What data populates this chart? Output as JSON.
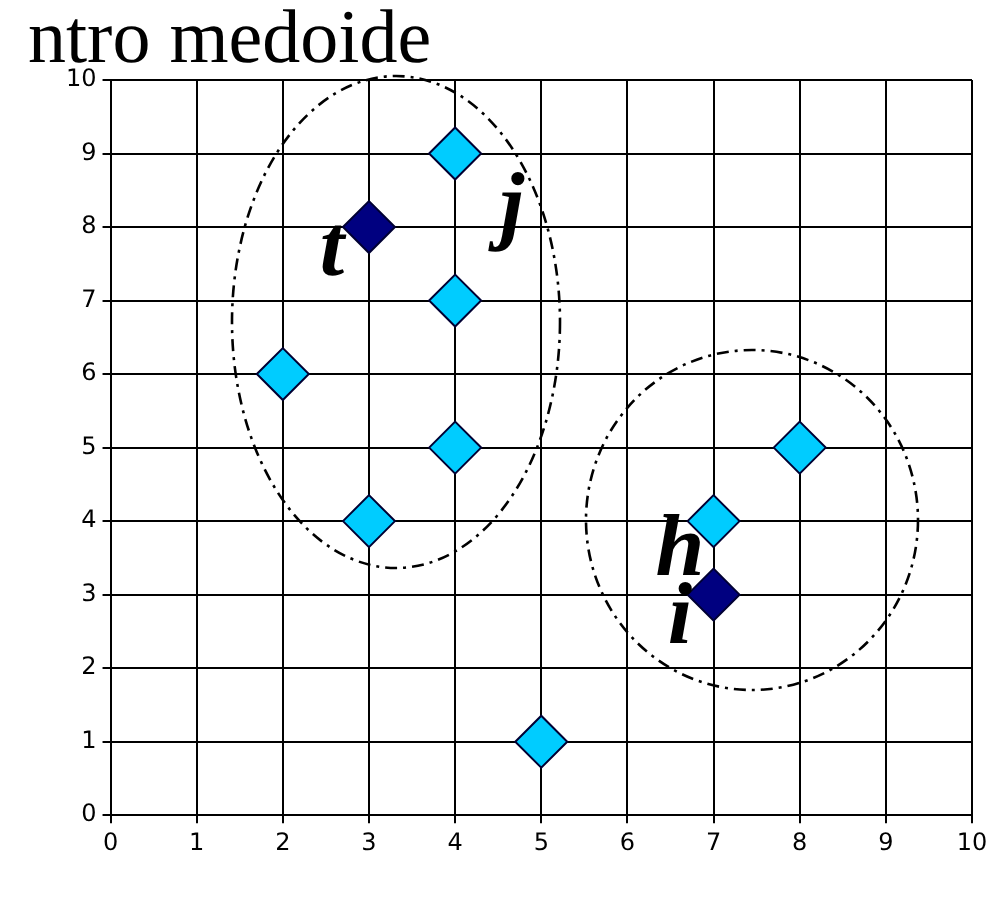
{
  "chart_data": {
    "type": "scatter",
    "title": "ntro medoide",
    "series": [
      {
        "color": "#00ccff",
        "x": [
          2,
          3,
          4,
          4,
          4,
          5,
          7,
          8
        ],
        "values": [
          6,
          4,
          9,
          7,
          5,
          1,
          4,
          5
        ]
      },
      {
        "color": "#000080",
        "x": [
          3,
          7
        ],
        "values": [
          8,
          3
        ]
      }
    ],
    "annotations": [
      "t",
      "j",
      "h",
      "i"
    ],
    "xlim": [
      0,
      10
    ],
    "ylim": [
      0,
      10
    ],
    "xticks": [
      0,
      1,
      2,
      3,
      4,
      5,
      6,
      7,
      8,
      9,
      10
    ],
    "yticks": [
      0,
      1,
      2,
      3,
      4,
      5,
      6,
      7,
      8,
      9,
      10
    ],
    "grid": true,
    "legend": false,
    "marker": "diamond"
  }
}
